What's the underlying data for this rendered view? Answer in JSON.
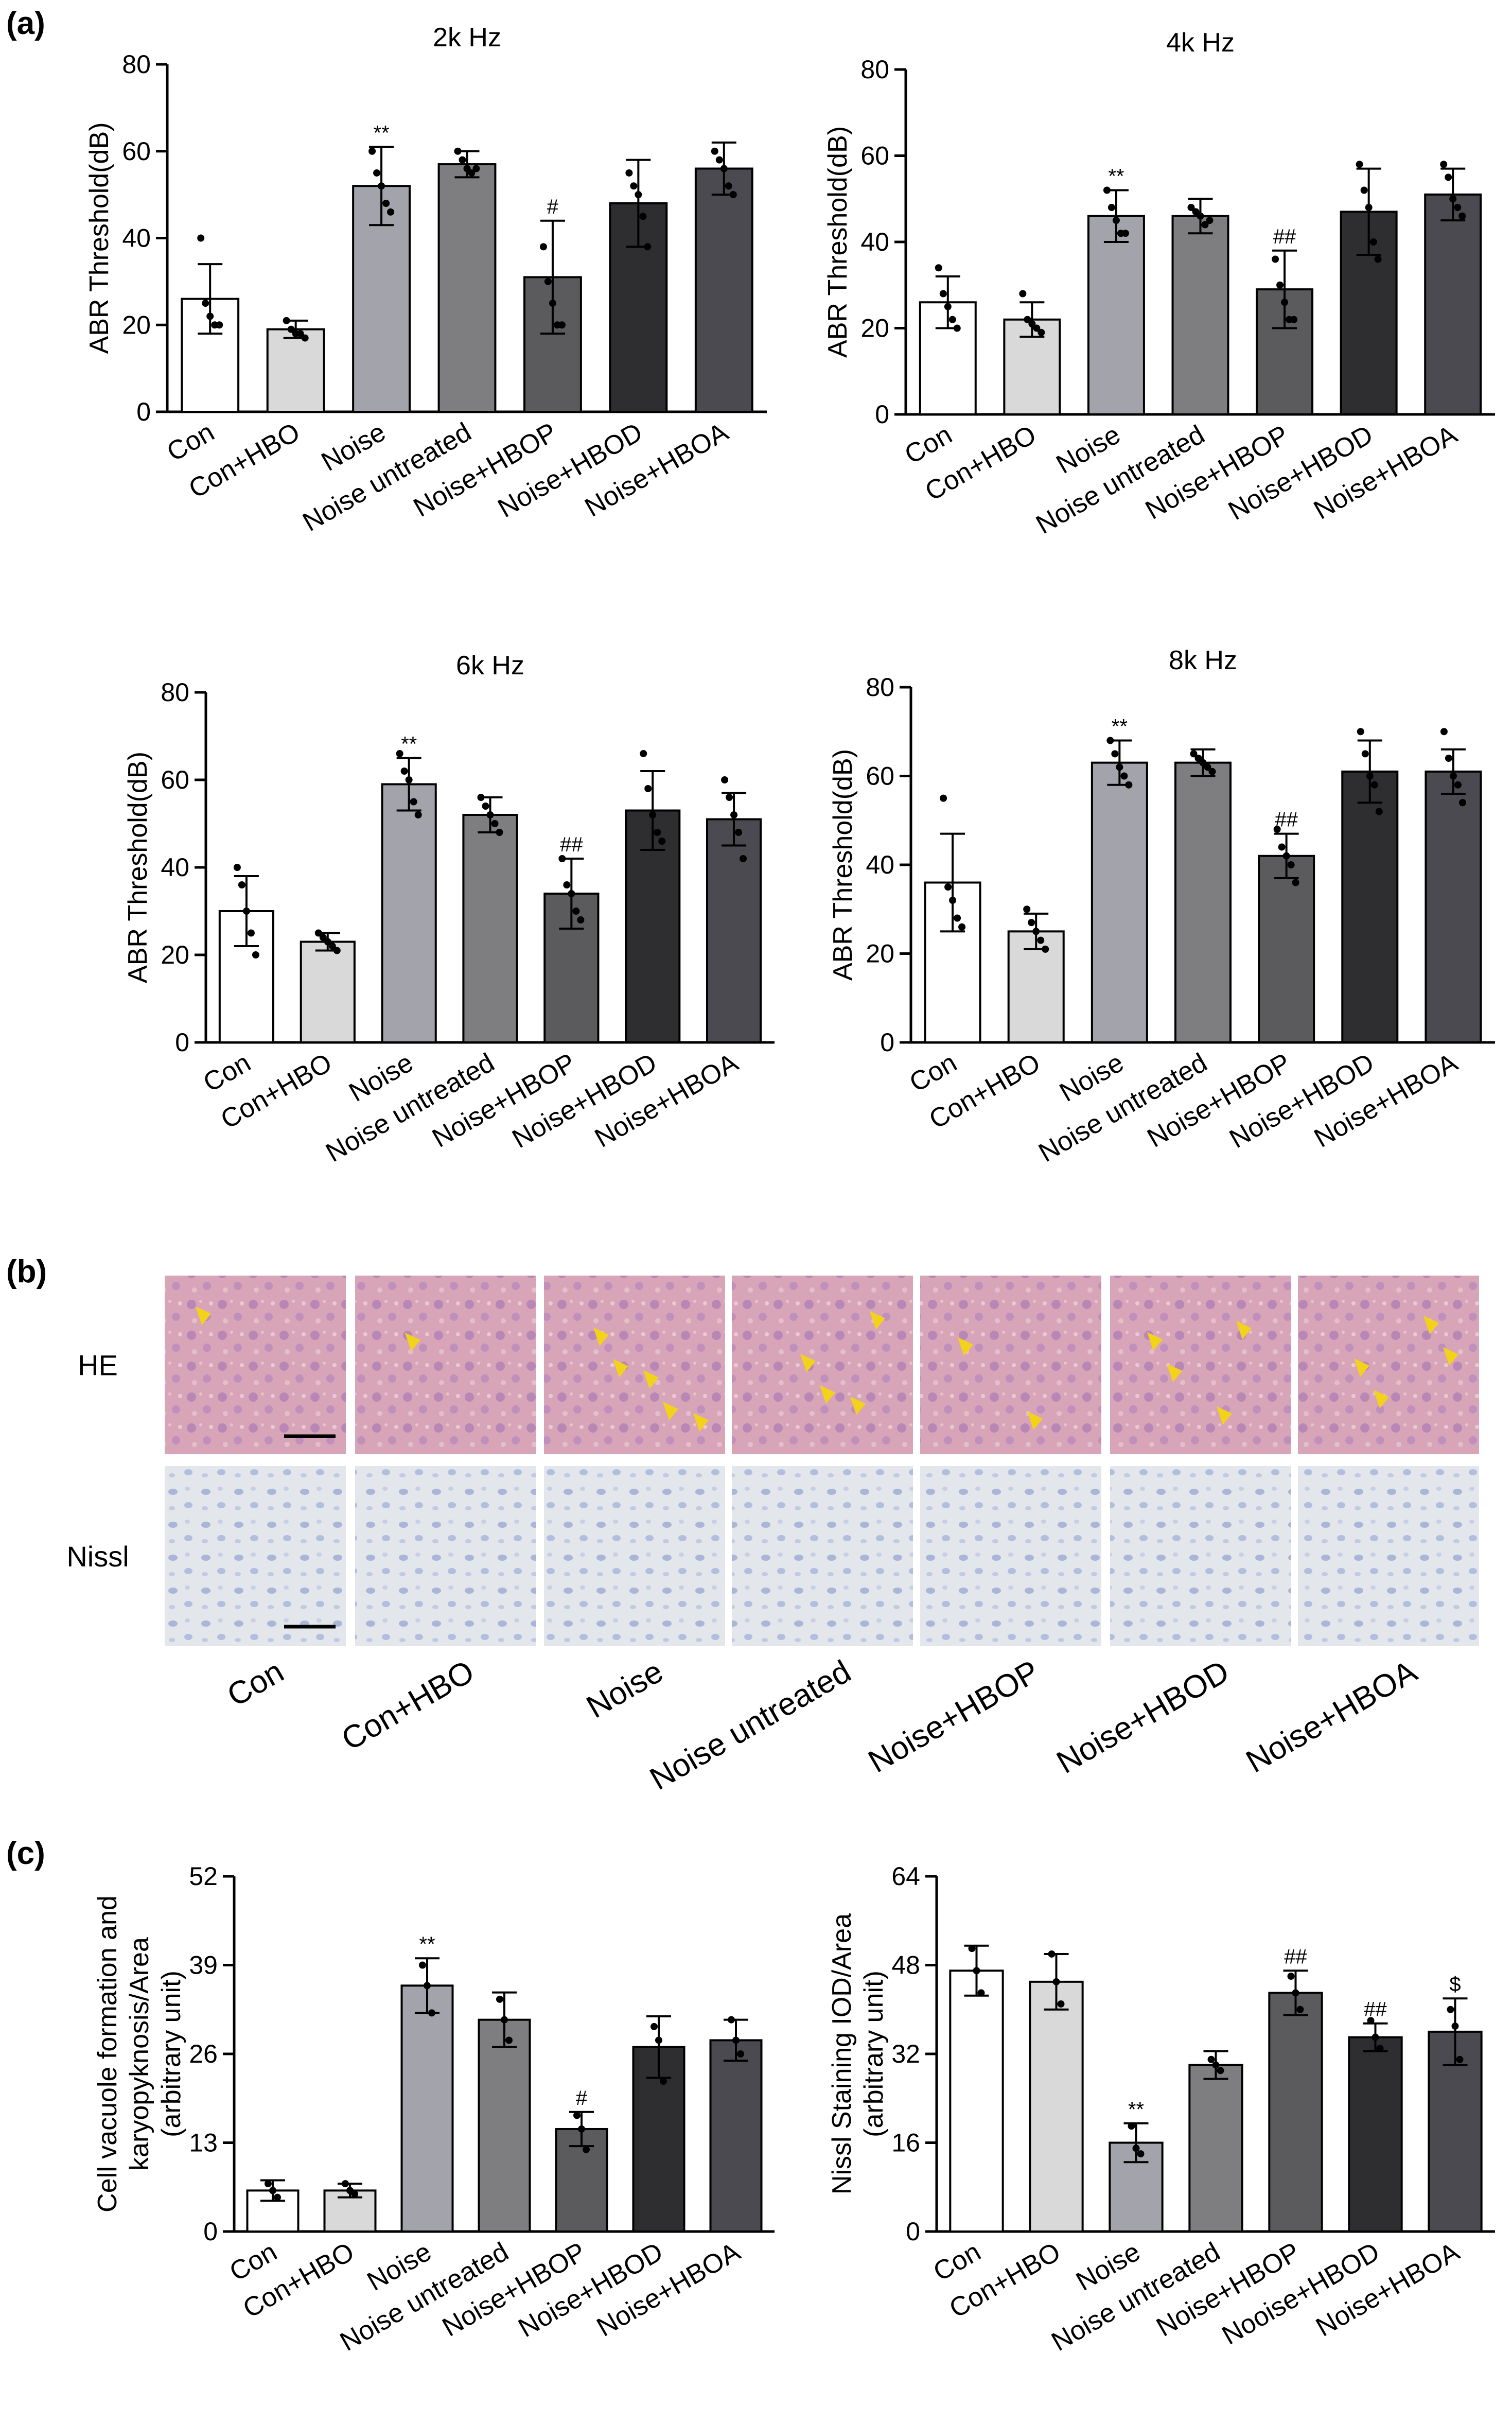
{
  "panel_labels": {
    "a": "(a)",
    "b": "(b)",
    "c": "(c)"
  },
  "colors": {
    "bars": [
      "#ffffff",
      "#d9d9d9",
      "#a3a3ab",
      "#7e7e80",
      "#5b5b5e",
      "#2e2e30",
      "#4a4a50"
    ],
    "axis": "#000000",
    "arrow": "#f2d31a"
  },
  "histology": {
    "rows": [
      {
        "label": "HE",
        "stain": "he"
      },
      {
        "label": "Nissl",
        "stain": "nissl"
      }
    ],
    "columns": [
      "Con",
      "Con+HBO",
      "Noise",
      "Noise untreated",
      "Noise+HBOP",
      "Noise+HBOD",
      "Noise+HBOA"
    ],
    "arrow_counts": [
      1,
      1,
      5,
      4,
      2,
      4,
      4
    ]
  },
  "chart_data": [
    {
      "type": "bar",
      "title": "2k Hz",
      "ylabel": "ABR Threshold(dB)",
      "categories": [
        "Con",
        "Con+HBO",
        "Noise",
        "Noise untreated",
        "Noise+HBOP",
        "Noise+HBOD",
        "Noise+HBOA"
      ],
      "values": [
        26,
        19,
        52,
        57,
        31,
        48,
        56
      ],
      "errors": [
        8,
        2,
        9,
        3,
        13,
        10,
        6
      ],
      "points": [
        [
          40,
          25,
          22,
          20,
          20
        ],
        [
          21,
          19,
          18,
          18,
          17
        ],
        [
          60,
          55,
          52,
          48,
          46
        ],
        [
          60,
          58,
          56,
          55,
          56
        ],
        [
          38,
          30,
          25,
          20,
          20
        ],
        [
          55,
          52,
          50,
          45,
          38
        ],
        [
          60,
          58,
          56,
          52,
          50
        ]
      ],
      "annotations": [
        "",
        "",
        "**",
        "",
        "#",
        "",
        ""
      ],
      "ylim": [
        0,
        80
      ],
      "yticks": [
        0,
        20,
        40,
        60,
        80
      ]
    },
    {
      "type": "bar",
      "title": "4k Hz",
      "ylabel": "ABR Threshold(dB)",
      "categories": [
        "Con",
        "Con+HBO",
        "Noise",
        "Noise untreated",
        "Noise+HBOP",
        "Noise+HBOD",
        "Noise+HBOA"
      ],
      "values": [
        26,
        22,
        46,
        46,
        29,
        47,
        51
      ],
      "errors": [
        6,
        4,
        6,
        4,
        9,
        10,
        6
      ],
      "points": [
        [
          34,
          28,
          25,
          22,
          20
        ],
        [
          28,
          22,
          21,
          20,
          19
        ],
        [
          52,
          48,
          45,
          42,
          42
        ],
        [
          48,
          47,
          46,
          44,
          45
        ],
        [
          36,
          30,
          26,
          22,
          22
        ],
        [
          58,
          52,
          48,
          40,
          36
        ],
        [
          58,
          55,
          50,
          48,
          46
        ]
      ],
      "annotations": [
        "",
        "",
        "**",
        "",
        "##",
        "",
        ""
      ],
      "ylim": [
        0,
        80
      ],
      "yticks": [
        0,
        20,
        40,
        60,
        80
      ]
    },
    {
      "type": "bar",
      "title": "6k Hz",
      "ylabel": "ABR Threshold(dB)",
      "categories": [
        "Con",
        "Con+HBO",
        "Noise",
        "Noise untreated",
        "Noise+HBOP",
        "Noise+HBOD",
        "Noise+HBOA"
      ],
      "values": [
        30,
        23,
        59,
        52,
        34,
        53,
        51
      ],
      "errors": [
        8,
        2,
        6,
        4,
        8,
        9,
        6
      ],
      "points": [
        [
          40,
          36,
          30,
          25,
          20
        ],
        [
          25,
          24,
          23,
          22,
          21
        ],
        [
          66,
          62,
          60,
          55,
          52
        ],
        [
          56,
          54,
          52,
          50,
          48
        ],
        [
          42,
          36,
          34,
          30,
          28
        ],
        [
          66,
          58,
          52,
          48,
          46
        ],
        [
          60,
          56,
          52,
          48,
          42
        ]
      ],
      "annotations": [
        "",
        "",
        "**",
        "",
        "##",
        "",
        ""
      ],
      "ylim": [
        0,
        80
      ],
      "yticks": [
        0,
        20,
        40,
        60,
        80
      ]
    },
    {
      "type": "bar",
      "title": "8k Hz",
      "ylabel": "ABR Threshold(dB)",
      "categories": [
        "Con",
        "Con+HBO",
        "Noise",
        "Noise untreated",
        "Noise+HBOP",
        "Noise+HBOD",
        "Noise+HBOA"
      ],
      "values": [
        36,
        25,
        63,
        63,
        42,
        61,
        61
      ],
      "errors": [
        11,
        4,
        5,
        3,
        5,
        7,
        5
      ],
      "points": [
        [
          55,
          35,
          32,
          28,
          26
        ],
        [
          30,
          27,
          25,
          23,
          21
        ],
        [
          68,
          65,
          62,
          60,
          58
        ],
        [
          65,
          64,
          63,
          62,
          61
        ],
        [
          48,
          44,
          42,
          40,
          36
        ],
        [
          70,
          65,
          60,
          58,
          52
        ],
        [
          70,
          64,
          60,
          58,
          54
        ]
      ],
      "annotations": [
        "",
        "",
        "**",
        "",
        "##",
        "",
        ""
      ],
      "ylim": [
        0,
        80
      ],
      "yticks": [
        0,
        20,
        40,
        60,
        80
      ]
    },
    {
      "type": "bar",
      "title": "",
      "ylabel_lines": [
        "Cell vacuole formation and",
        "karyopyknosis/Area",
        "(arbitrary unit)"
      ],
      "categories": [
        "Con",
        "Con+HBO",
        "Noise",
        "Noise untreated",
        "Noise+HBOP",
        "Noise+HBOD",
        "Noise+HBOA"
      ],
      "values": [
        6,
        6,
        36,
        31,
        15,
        27,
        28
      ],
      "errors": [
        1.5,
        1,
        4,
        4,
        2.5,
        4.5,
        3
      ],
      "points": [
        [
          7,
          6,
          5
        ],
        [
          7,
          6,
          5.5
        ],
        [
          39,
          36,
          32
        ],
        [
          34,
          31,
          28
        ],
        [
          17,
          15,
          12
        ],
        [
          30,
          28,
          22
        ],
        [
          31,
          28,
          26
        ]
      ],
      "annotations": [
        "",
        "",
        "**",
        "",
        "#",
        "",
        ""
      ],
      "ylim": [
        0,
        52
      ],
      "yticks": [
        0,
        13,
        26,
        39,
        52
      ]
    },
    {
      "type": "bar",
      "title": "",
      "ylabel_lines": [
        "Nissl Staining IOD/Area",
        "(arbitrary unit)"
      ],
      "categories": [
        "Con",
        "Con+HBO",
        "Noise",
        "Noise untreated",
        "Noise+HBOP",
        "Nooise+HBOD",
        "Noise+HBOA"
      ],
      "values": [
        47,
        45,
        16,
        30,
        43,
        35,
        36
      ],
      "errors": [
        4.5,
        5,
        3.5,
        2.5,
        4,
        2.5,
        6
      ],
      "points": [
        [
          51,
          47,
          43
        ],
        [
          50,
          45,
          41
        ],
        [
          19,
          15,
          14
        ],
        [
          31,
          30,
          29
        ],
        [
          46,
          43,
          40
        ],
        [
          38,
          35,
          33
        ],
        [
          40,
          37,
          31
        ]
      ],
      "annotations": [
        "",
        "",
        "**",
        "",
        "##",
        "##",
        "$"
      ],
      "ylim": [
        0,
        64
      ],
      "yticks": [
        0,
        16,
        32,
        48,
        64
      ]
    }
  ]
}
